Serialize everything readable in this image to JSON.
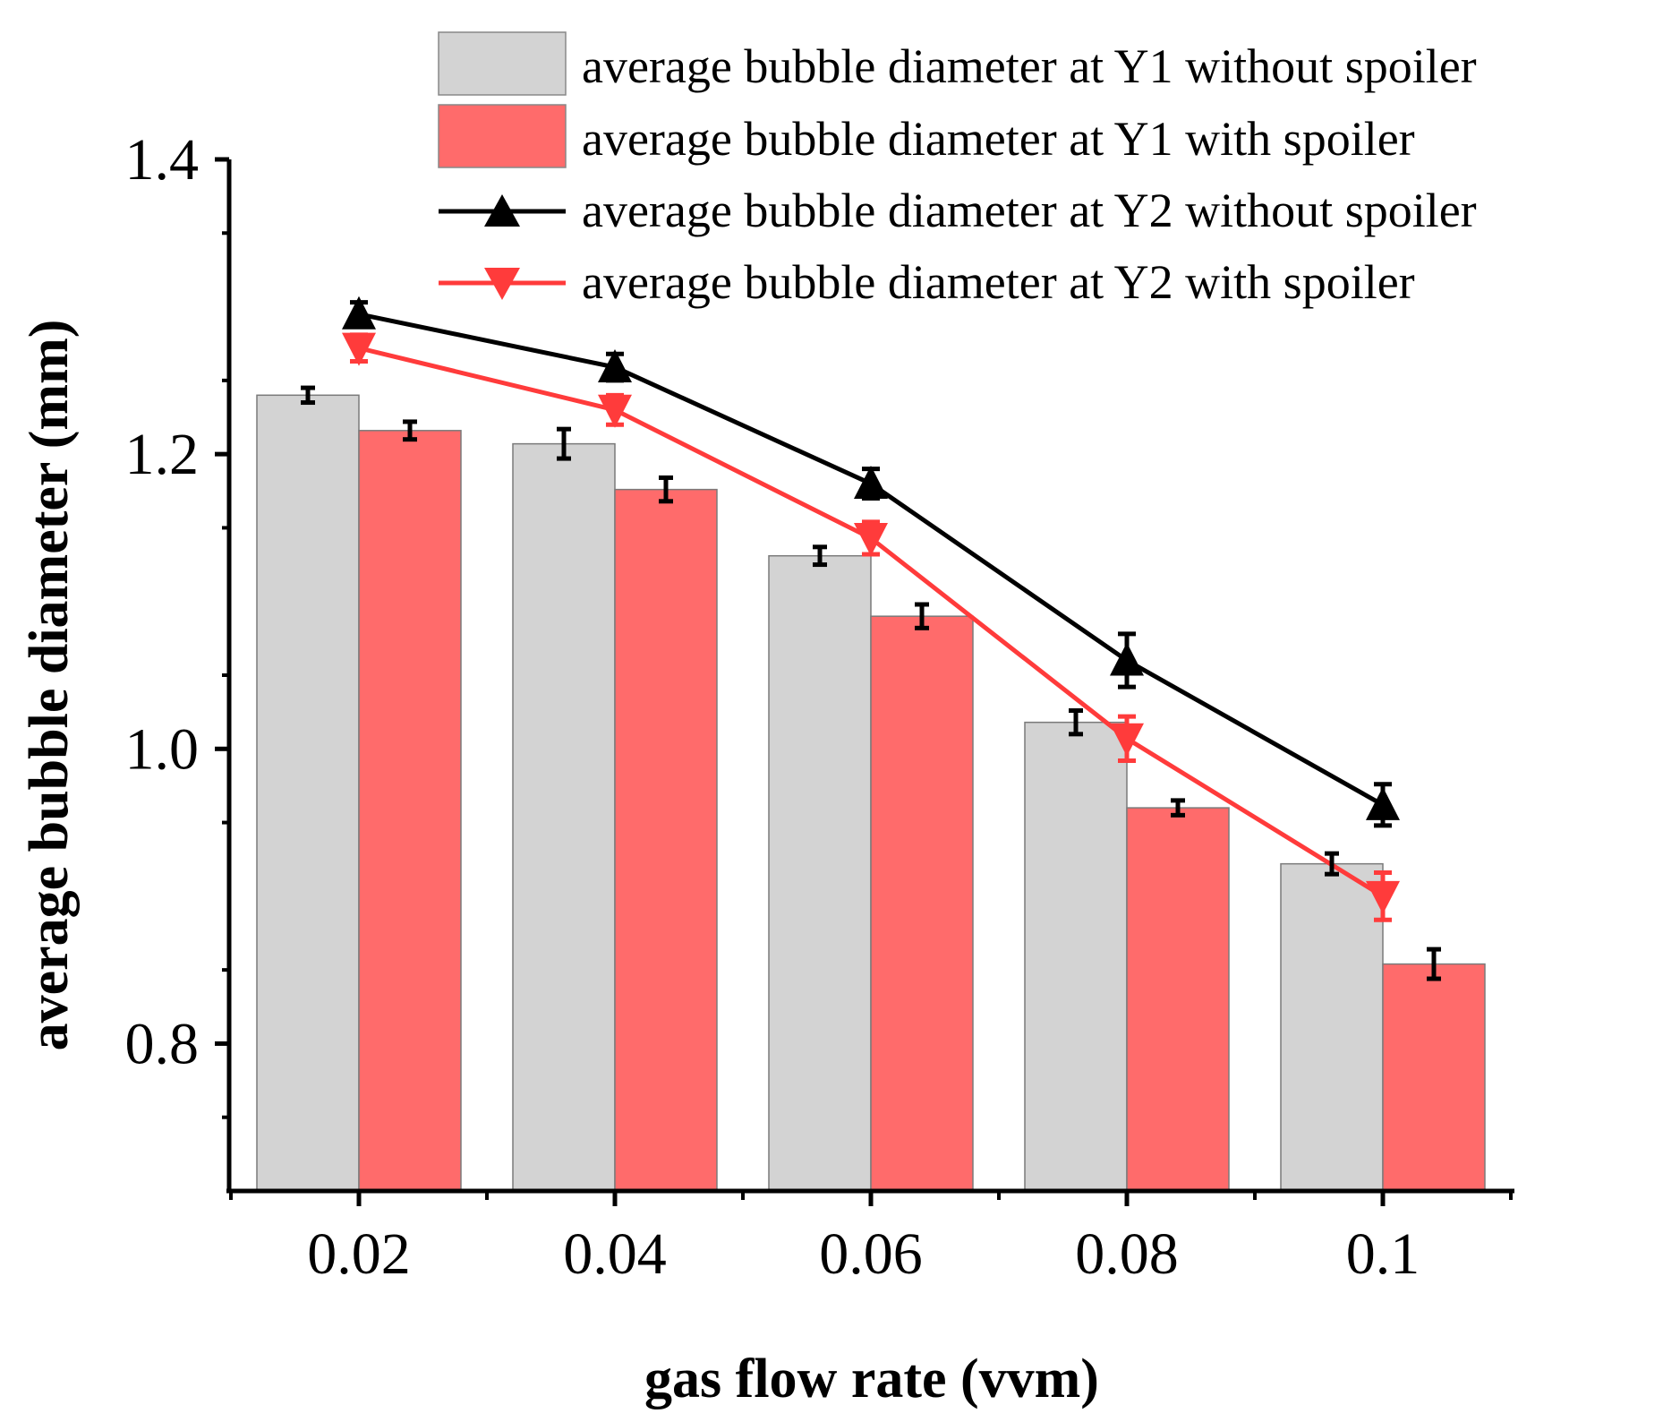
{
  "chart_data": {
    "type": "bar",
    "title": "",
    "xlabel": "gas flow rate (vvm)",
    "ylabel": "average bubble diameter (mm)",
    "categories": [
      "0.02",
      "0.04",
      "0.06",
      "0.08",
      "0.1"
    ],
    "ylim": [
      0.7,
      1.4
    ],
    "yticks": [
      "0.8",
      "1.0",
      "1.2",
      "1.4"
    ],
    "yticks_values": [
      0.8,
      1.0,
      1.2,
      1.4
    ],
    "grid": false,
    "legend_position": "top-right",
    "bar_series": [
      {
        "name": "average bubble diameter at Y1 without spoiler",
        "values": [
          1.24,
          1.207,
          1.131,
          1.018,
          0.922
        ],
        "errors": [
          0.005,
          0.01,
          0.006,
          0.008,
          0.007
        ],
        "color": "#d3d3d3"
      },
      {
        "name": "average bubble diameter at Y1 with spoiler",
        "values": [
          1.216,
          1.176,
          1.09,
          0.96,
          0.854
        ],
        "errors": [
          0.006,
          0.008,
          0.008,
          0.005,
          0.01
        ],
        "color": "#ff6b6b"
      }
    ],
    "line_series": [
      {
        "name": "average bubble diameter at Y2 without spoiler",
        "values": [
          1.295,
          1.259,
          1.18,
          1.06,
          0.962
        ],
        "errors": [
          0.008,
          0.009,
          0.01,
          0.018,
          0.014
        ],
        "color": "#000000",
        "marker": "triangle-up"
      },
      {
        "name": "average bubble diameter at Y2 with spoiler",
        "values": [
          1.272,
          1.23,
          1.143,
          1.007,
          0.9
        ],
        "errors": [
          0.009,
          0.01,
          0.011,
          0.015,
          0.016
        ],
        "color": "#ff3b3b",
        "marker": "triangle-down"
      }
    ]
  }
}
